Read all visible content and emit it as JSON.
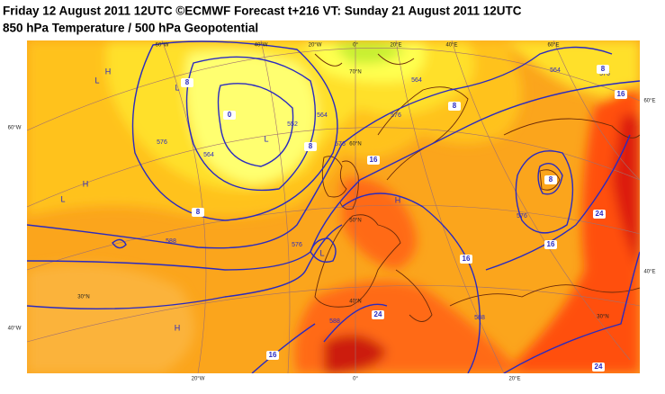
{
  "header": {
    "title_line1": "Friday 12 August 2011 12UTC ©ECMWF Forecast t+216 VT: Sunday 21 August 2011 12UTC",
    "title_line2": "850 hPa Temperature / 500 hPa Geopotential"
  },
  "map": {
    "graticule_labels": [
      "60°W",
      "40°W",
      "20°W",
      "0°",
      "20°E",
      "40°E",
      "60°E",
      "60°E",
      "60°W",
      "70°N",
      "60°N",
      "50°N",
      "40°N",
      "30°N",
      "30°N",
      "40°W",
      "40°E",
      "20°W",
      "0°",
      "20°E"
    ],
    "geopotential_labels": [
      564,
      552,
      564,
      576,
      576,
      564,
      576,
      588,
      576,
      588,
      588,
      576,
      564,
      576
    ],
    "temperature_labels": [
      8,
      0,
      8,
      16,
      8,
      8,
      16,
      8,
      16,
      16,
      24,
      24,
      16,
      24,
      8
    ],
    "pressure_centers": [
      "L",
      "L",
      "L",
      "H",
      "L",
      "L",
      "H",
      "H",
      "H"
    ]
  }
}
